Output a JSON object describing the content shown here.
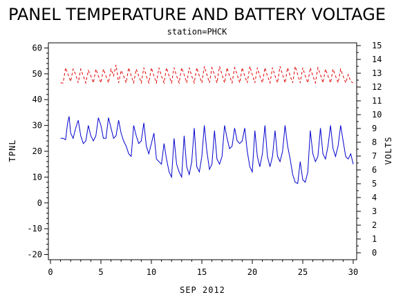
{
  "chart_data": {
    "type": "line",
    "title": "PANEL TEMPERATURE AND BATTERY VOLTAGE",
    "subtitle": "station=PHCK",
    "xlabel": "SEP 2012",
    "ylabel_left": "TPNL",
    "ylabel_right": "VOLTS",
    "xlim": [
      0,
      30
    ],
    "ylim_left": [
      -22,
      62
    ],
    "ylim_right": [
      -0.5,
      15.2
    ],
    "x_ticks": [
      0,
      5,
      10,
      15,
      20,
      25,
      30
    ],
    "y_ticks_left": [
      -20,
      -10,
      0,
      10,
      20,
      30,
      40,
      50,
      60
    ],
    "y_ticks_right": [
      0,
      1,
      2,
      3,
      4,
      5,
      6,
      7,
      8,
      9,
      10,
      11,
      12,
      13,
      14,
      15
    ],
    "grid": false,
    "series": [
      {
        "axis": "left",
        "color": "#0000cc",
        "style": "solid",
        "x": [
          1.0,
          1.25,
          1.5,
          1.7,
          1.85,
          2.0,
          2.25,
          2.5,
          2.75,
          3.0,
          3.25,
          3.5,
          3.75,
          4.0,
          4.25,
          4.5,
          4.75,
          5.0,
          5.25,
          5.5,
          5.75,
          6.0,
          6.25,
          6.5,
          6.75,
          7.0,
          7.25,
          7.5,
          7.75,
          8.0,
          8.25,
          8.5,
          8.75,
          9.0,
          9.25,
          9.5,
          9.75,
          10.0,
          10.25,
          10.5,
          10.75,
          11.0,
          11.25,
          11.5,
          11.75,
          12.0,
          12.25,
          12.5,
          12.75,
          13.0,
          13.25,
          13.5,
          13.75,
          14.0,
          14.25,
          14.5,
          14.75,
          15.0,
          15.25,
          15.5,
          15.75,
          16.0,
          16.25,
          16.5,
          16.75,
          17.0,
          17.25,
          17.5,
          17.75,
          18.0,
          18.25,
          18.5,
          18.75,
          19.0,
          19.25,
          19.5,
          19.75,
          20.0,
          20.25,
          20.5,
          20.75,
          21.0,
          21.25,
          21.5,
          21.75,
          22.0,
          22.25,
          22.5,
          22.75,
          23.0,
          23.25,
          23.5,
          23.75,
          24.0,
          24.25,
          24.5,
          24.75,
          25.0,
          25.25,
          25.5,
          25.75,
          26.0,
          26.25,
          26.5,
          26.75,
          27.0,
          27.25,
          27.5,
          27.75,
          28.0,
          28.25,
          28.5,
          28.75,
          29.0,
          29.25,
          29.5,
          29.75,
          30.0
        ],
        "values": [
          25,
          25,
          24.5,
          31,
          33.5,
          27,
          25,
          29,
          32,
          26,
          23,
          24,
          30,
          26,
          24,
          26,
          33,
          30,
          25,
          25,
          33,
          29,
          25,
          26,
          32,
          27,
          24,
          22,
          19,
          18,
          30,
          26,
          23,
          24,
          31,
          22,
          19,
          23,
          27,
          17,
          16,
          15,
          23,
          17,
          12,
          10,
          25,
          15,
          12,
          10,
          26,
          14,
          11,
          16,
          29,
          14,
          12,
          18,
          30,
          20,
          13,
          15,
          28,
          17,
          15,
          18,
          30,
          25,
          21,
          22,
          29,
          24,
          23,
          24,
          29,
          20,
          14,
          12,
          28,
          18,
          14,
          19,
          30,
          18,
          14,
          18,
          28,
          18,
          16,
          20,
          30,
          22,
          17,
          11,
          8,
          7.5,
          16,
          9,
          8,
          12,
          28,
          19,
          16,
          18,
          29,
          19,
          17,
          22,
          30,
          21,
          18,
          22,
          30,
          24,
          18,
          17,
          19,
          15
        ]
      },
      {
        "axis": "right",
        "color": "#e00000",
        "style": "dashed",
        "x": [
          1.0,
          1.25,
          1.5,
          1.75,
          2.0,
          2.25,
          2.5,
          2.75,
          3.0,
          3.25,
          3.5,
          3.75,
          4.0,
          4.25,
          4.5,
          4.75,
          5.0,
          5.25,
          5.5,
          5.75,
          6.0,
          6.25,
          6.5,
          6.75,
          7.0,
          7.25,
          7.5,
          7.75,
          8.0,
          8.25,
          8.5,
          8.75,
          9.0,
          9.25,
          9.5,
          9.75,
          10.0,
          10.25,
          10.5,
          10.75,
          11.0,
          11.25,
          11.5,
          11.75,
          12.0,
          12.25,
          12.5,
          12.75,
          13.0,
          13.25,
          13.5,
          13.75,
          14.0,
          14.25,
          14.5,
          14.75,
          15.0,
          15.25,
          15.5,
          15.75,
          16.0,
          16.25,
          16.5,
          16.75,
          17.0,
          17.25,
          17.5,
          17.75,
          18.0,
          18.25,
          18.5,
          18.75,
          19.0,
          19.25,
          19.5,
          19.75,
          20.0,
          20.25,
          20.5,
          20.75,
          21.0,
          21.25,
          21.5,
          21.75,
          22.0,
          22.25,
          22.5,
          22.75,
          23.0,
          23.25,
          23.5,
          23.75,
          24.0,
          24.25,
          24.5,
          24.75,
          25.0,
          25.25,
          25.5,
          25.75,
          26.0,
          26.25,
          26.5,
          26.75,
          27.0,
          27.25,
          27.5,
          27.75,
          28.0,
          28.25,
          28.5,
          28.75,
          29.0,
          29.25,
          29.5,
          29.75,
          30.0
        ],
        "values": [
          12.3,
          12.3,
          13.4,
          12.9,
          12.4,
          13.3,
          12.9,
          12.3,
          13.3,
          12.8,
          12.3,
          13.2,
          12.8,
          12.3,
          13.3,
          12.8,
          12.3,
          13.3,
          12.8,
          12.3,
          13.3,
          12.8,
          13.6,
          12.3,
          13.2,
          12.8,
          12.3,
          13.4,
          12.8,
          12.3,
          13.3,
          12.8,
          12.3,
          13.4,
          12.8,
          12.3,
          13.4,
          12.8,
          12.3,
          13.4,
          12.8,
          12.3,
          13.4,
          12.8,
          12.3,
          13.4,
          12.8,
          12.3,
          13.4,
          12.9,
          12.3,
          13.4,
          12.8,
          12.3,
          13.4,
          12.8,
          12.3,
          13.5,
          12.9,
          12.3,
          13.4,
          12.9,
          12.3,
          13.5,
          12.9,
          12.3,
          13.4,
          12.8,
          12.3,
          13.4,
          12.9,
          12.3,
          13.4,
          12.8,
          12.3,
          13.5,
          12.9,
          12.3,
          13.4,
          12.8,
          12.3,
          13.4,
          12.8,
          12.3,
          13.4,
          12.8,
          12.3,
          13.5,
          12.9,
          12.3,
          13.4,
          12.8,
          12.3,
          13.5,
          12.9,
          12.3,
          13.4,
          12.8,
          12.3,
          13.4,
          12.8,
          12.3,
          13.4,
          12.9,
          12.3,
          13.3,
          12.8,
          12.3,
          13.3,
          12.8,
          12.3,
          13.3,
          12.8,
          12.3,
          12.9,
          12.4,
          12.3
        ]
      }
    ]
  }
}
